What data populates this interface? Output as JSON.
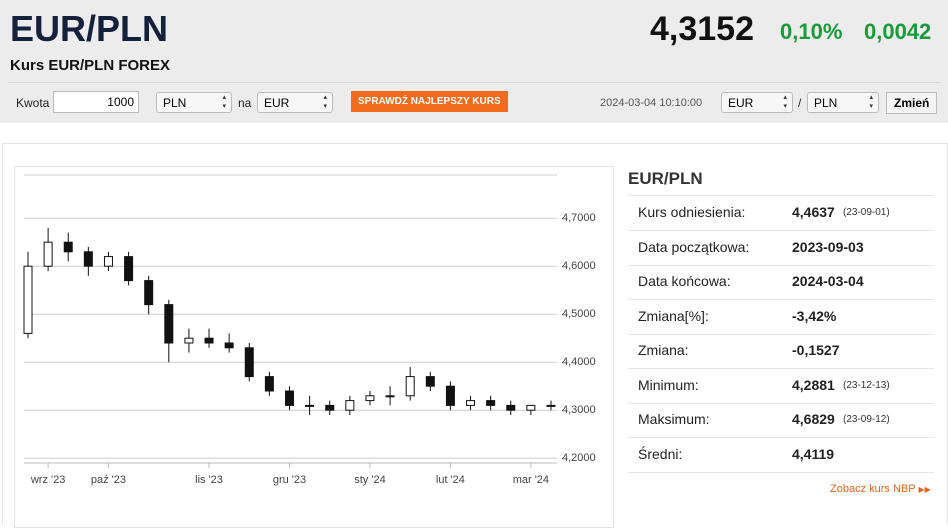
{
  "header": {
    "title": "EUR/PLN",
    "subtitle": "Kurs EUR/PLN FOREX",
    "rate": "4,3152",
    "change_pct": "0,10%",
    "change": "0,0042"
  },
  "converter": {
    "amount_label": "Kwota",
    "amount": "1000",
    "from": "PLN",
    "to_label": "na",
    "to": "EUR",
    "button": "SPRAWDŹ NAJLEPSZY KURS",
    "timestamp": "2024-03-04 10:10:00",
    "pair_from": "EUR",
    "separator": "/",
    "pair_to": "PLN",
    "change_button": "Zmień"
  },
  "chart_data": {
    "type": "candlestick",
    "categories": [
      null,
      "wrz '23",
      null,
      null,
      "paź '23",
      null,
      null,
      null,
      null,
      "lis '23",
      null,
      null,
      null,
      "gru '23",
      null,
      null,
      null,
      "sty '24",
      null,
      null,
      null,
      "lut '24",
      null,
      null,
      null,
      "mar '24",
      null
    ],
    "open": [
      4.46,
      4.6,
      4.65,
      4.63,
      4.6,
      4.62,
      4.57,
      4.52,
      4.44,
      4.45,
      4.44,
      4.43,
      4.37,
      4.34,
      4.31,
      4.31,
      4.3,
      4.32,
      4.33,
      4.33,
      4.37,
      4.35,
      4.31,
      4.32,
      4.31,
      4.3,
      4.31
    ],
    "high": [
      4.63,
      4.68,
      4.67,
      4.64,
      4.63,
      4.63,
      4.58,
      4.53,
      4.47,
      4.47,
      4.46,
      4.44,
      4.38,
      4.35,
      4.33,
      4.32,
      4.33,
      4.34,
      4.35,
      4.39,
      4.38,
      4.36,
      4.33,
      4.33,
      4.32,
      4.31,
      4.32
    ],
    "low": [
      4.45,
      4.59,
      4.61,
      4.58,
      4.59,
      4.56,
      4.5,
      4.4,
      4.42,
      4.43,
      4.42,
      4.36,
      4.33,
      4.3,
      4.29,
      4.29,
      4.29,
      4.31,
      4.31,
      4.32,
      4.34,
      4.3,
      4.3,
      4.3,
      4.29,
      4.29,
      4.3
    ],
    "close": [
      4.6,
      4.65,
      4.63,
      4.6,
      4.62,
      4.57,
      4.52,
      4.44,
      4.45,
      4.44,
      4.43,
      4.37,
      4.34,
      4.31,
      4.31,
      4.3,
      4.32,
      4.33,
      4.33,
      4.37,
      4.35,
      4.31,
      4.32,
      4.31,
      4.3,
      4.31,
      4.31
    ],
    "color": "#111111",
    "ylim": [
      4.19,
      4.79
    ],
    "yticks": [
      {
        "value": 4.2,
        "label": "4,2000"
      },
      {
        "value": 4.3,
        "label": "4,3000"
      },
      {
        "value": 4.4,
        "label": "4,4000"
      },
      {
        "value": 4.5,
        "label": "4,5000"
      },
      {
        "value": 4.6,
        "label": "4,6000"
      },
      {
        "value": 4.7,
        "label": "4,7000"
      }
    ],
    "grid": true
  },
  "stats": {
    "title": "EUR/PLN",
    "rows": [
      [
        "Kurs odniesienia:",
        "4,4637",
        "(23-09-01)"
      ],
      [
        "Data początkowa:",
        "2023-09-03",
        null
      ],
      [
        "Data końcowa:",
        "2024-03-04",
        null
      ],
      [
        "Zmiana[%]:",
        "-3,42%",
        null
      ],
      [
        "Zmiana:",
        "-0,1527",
        null
      ],
      [
        "Minimum:",
        "4,2881",
        "(23-12-13)"
      ],
      [
        "Maksimum:",
        "4,6829",
        "(23-09-12)"
      ],
      [
        "Średni:",
        "4,4119",
        null
      ]
    ],
    "link": "Zobacz kurs NBP"
  }
}
